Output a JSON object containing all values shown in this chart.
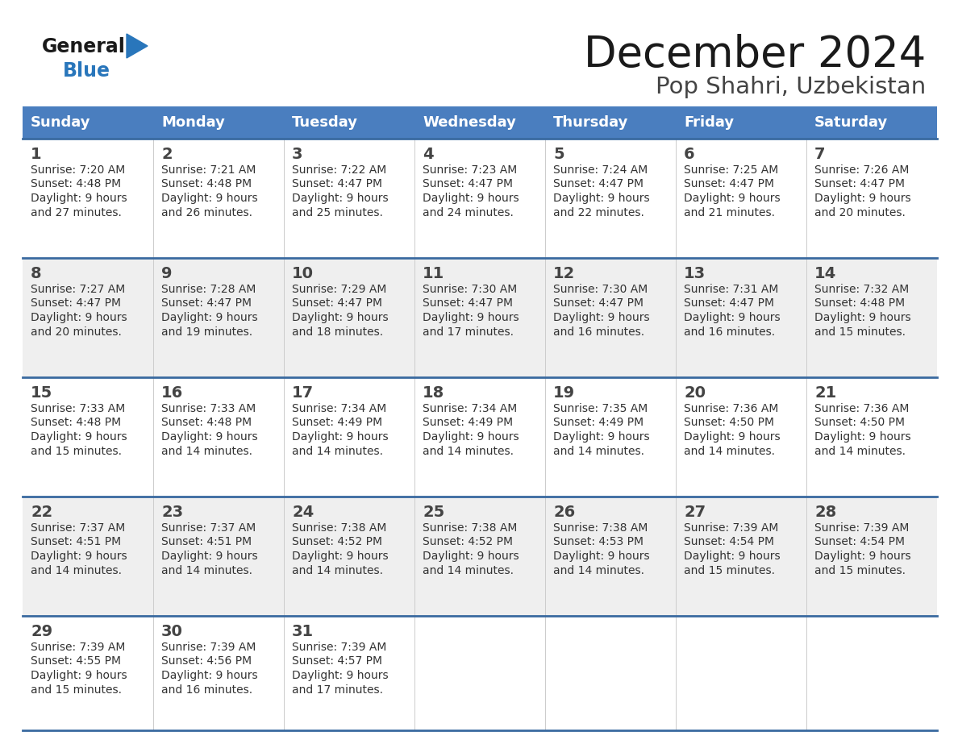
{
  "title": "December 2024",
  "subtitle": "Pop Shahri, Uzbekistan",
  "days_of_week": [
    "Sunday",
    "Monday",
    "Tuesday",
    "Wednesday",
    "Thursday",
    "Friday",
    "Saturday"
  ],
  "header_bg": "#4a7ebf",
  "header_text_color": "#FFFFFF",
  "cell_bg_white": "#FFFFFF",
  "cell_bg_gray": "#EFEFEF",
  "border_color": "#3a6aa0",
  "title_color": "#1a1a1a",
  "subtitle_color": "#444444",
  "day_number_color": "#444444",
  "cell_text_color": "#333333",
  "logo_general_color": "#1a1a1a",
  "logo_blue_color": "#2976bb",
  "calendar_data": [
    [
      {
        "day": 1,
        "sunrise": "7:20 AM",
        "sunset": "4:48 PM",
        "daylight_hours": 9,
        "daylight_minutes": 27
      },
      {
        "day": 2,
        "sunrise": "7:21 AM",
        "sunset": "4:48 PM",
        "daylight_hours": 9,
        "daylight_minutes": 26
      },
      {
        "day": 3,
        "sunrise": "7:22 AM",
        "sunset": "4:47 PM",
        "daylight_hours": 9,
        "daylight_minutes": 25
      },
      {
        "day": 4,
        "sunrise": "7:23 AM",
        "sunset": "4:47 PM",
        "daylight_hours": 9,
        "daylight_minutes": 24
      },
      {
        "day": 5,
        "sunrise": "7:24 AM",
        "sunset": "4:47 PM",
        "daylight_hours": 9,
        "daylight_minutes": 22
      },
      {
        "day": 6,
        "sunrise": "7:25 AM",
        "sunset": "4:47 PM",
        "daylight_hours": 9,
        "daylight_minutes": 21
      },
      {
        "day": 7,
        "sunrise": "7:26 AM",
        "sunset": "4:47 PM",
        "daylight_hours": 9,
        "daylight_minutes": 20
      }
    ],
    [
      {
        "day": 8,
        "sunrise": "7:27 AM",
        "sunset": "4:47 PM",
        "daylight_hours": 9,
        "daylight_minutes": 20
      },
      {
        "day": 9,
        "sunrise": "7:28 AM",
        "sunset": "4:47 PM",
        "daylight_hours": 9,
        "daylight_minutes": 19
      },
      {
        "day": 10,
        "sunrise": "7:29 AM",
        "sunset": "4:47 PM",
        "daylight_hours": 9,
        "daylight_minutes": 18
      },
      {
        "day": 11,
        "sunrise": "7:30 AM",
        "sunset": "4:47 PM",
        "daylight_hours": 9,
        "daylight_minutes": 17
      },
      {
        "day": 12,
        "sunrise": "7:30 AM",
        "sunset": "4:47 PM",
        "daylight_hours": 9,
        "daylight_minutes": 16
      },
      {
        "day": 13,
        "sunrise": "7:31 AM",
        "sunset": "4:47 PM",
        "daylight_hours": 9,
        "daylight_minutes": 16
      },
      {
        "day": 14,
        "sunrise": "7:32 AM",
        "sunset": "4:48 PM",
        "daylight_hours": 9,
        "daylight_minutes": 15
      }
    ],
    [
      {
        "day": 15,
        "sunrise": "7:33 AM",
        "sunset": "4:48 PM",
        "daylight_hours": 9,
        "daylight_minutes": 15
      },
      {
        "day": 16,
        "sunrise": "7:33 AM",
        "sunset": "4:48 PM",
        "daylight_hours": 9,
        "daylight_minutes": 14
      },
      {
        "day": 17,
        "sunrise": "7:34 AM",
        "sunset": "4:49 PM",
        "daylight_hours": 9,
        "daylight_minutes": 14
      },
      {
        "day": 18,
        "sunrise": "7:34 AM",
        "sunset": "4:49 PM",
        "daylight_hours": 9,
        "daylight_minutes": 14
      },
      {
        "day": 19,
        "sunrise": "7:35 AM",
        "sunset": "4:49 PM",
        "daylight_hours": 9,
        "daylight_minutes": 14
      },
      {
        "day": 20,
        "sunrise": "7:36 AM",
        "sunset": "4:50 PM",
        "daylight_hours": 9,
        "daylight_minutes": 14
      },
      {
        "day": 21,
        "sunrise": "7:36 AM",
        "sunset": "4:50 PM",
        "daylight_hours": 9,
        "daylight_minutes": 14
      }
    ],
    [
      {
        "day": 22,
        "sunrise": "7:37 AM",
        "sunset": "4:51 PM",
        "daylight_hours": 9,
        "daylight_minutes": 14
      },
      {
        "day": 23,
        "sunrise": "7:37 AM",
        "sunset": "4:51 PM",
        "daylight_hours": 9,
        "daylight_minutes": 14
      },
      {
        "day": 24,
        "sunrise": "7:38 AM",
        "sunset": "4:52 PM",
        "daylight_hours": 9,
        "daylight_minutes": 14
      },
      {
        "day": 25,
        "sunrise": "7:38 AM",
        "sunset": "4:52 PM",
        "daylight_hours": 9,
        "daylight_minutes": 14
      },
      {
        "day": 26,
        "sunrise": "7:38 AM",
        "sunset": "4:53 PM",
        "daylight_hours": 9,
        "daylight_minutes": 14
      },
      {
        "day": 27,
        "sunrise": "7:39 AM",
        "sunset": "4:54 PM",
        "daylight_hours": 9,
        "daylight_minutes": 15
      },
      {
        "day": 28,
        "sunrise": "7:39 AM",
        "sunset": "4:54 PM",
        "daylight_hours": 9,
        "daylight_minutes": 15
      }
    ],
    [
      {
        "day": 29,
        "sunrise": "7:39 AM",
        "sunset": "4:55 PM",
        "daylight_hours": 9,
        "daylight_minutes": 15
      },
      {
        "day": 30,
        "sunrise": "7:39 AM",
        "sunset": "4:56 PM",
        "daylight_hours": 9,
        "daylight_minutes": 16
      },
      {
        "day": 31,
        "sunrise": "7:39 AM",
        "sunset": "4:57 PM",
        "daylight_hours": 9,
        "daylight_minutes": 17
      },
      null,
      null,
      null,
      null
    ]
  ]
}
